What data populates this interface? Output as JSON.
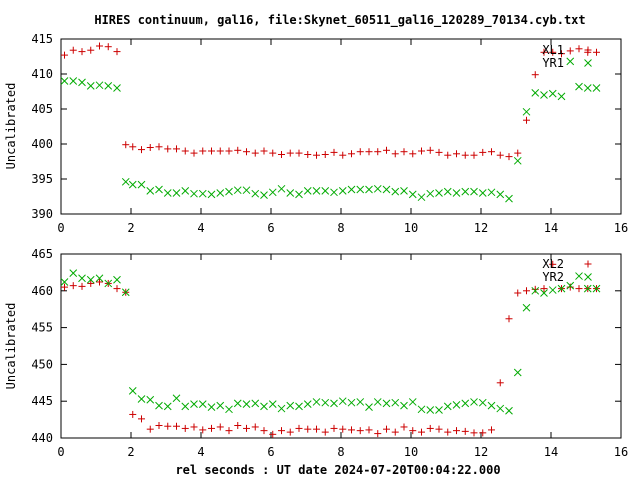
{
  "title": "HIRES continuum, gal16, file:Skynet_60511_gal16_120289_70134.cyb.txt",
  "xlabel": "rel seconds : UT date 2024-07-20T00:04:22.000",
  "colors": {
    "series1": "#cc0000",
    "series2": "#00aa00",
    "axis": "#000000"
  },
  "chart_data": [
    {
      "type": "scatter",
      "ylabel": "Uncalibrated",
      "xlim": [
        0,
        16
      ],
      "ylim": [
        390,
        415
      ],
      "xticks": [
        0,
        2,
        4,
        6,
        8,
        10,
        12,
        14,
        16
      ],
      "yticks": [
        390,
        395,
        400,
        405,
        410,
        415
      ],
      "legend_position": "top-right",
      "series": [
        {
          "name": "XL1",
          "marker": "plus",
          "color": "#cc0000",
          "x": [
            0.1,
            0.35,
            0.6,
            0.85,
            1.1,
            1.35,
            1.6,
            1.85,
            2.05,
            2.3,
            2.55,
            2.8,
            3.05,
            3.3,
            3.55,
            3.8,
            4.05,
            4.3,
            4.55,
            4.8,
            5.05,
            5.3,
            5.55,
            5.8,
            6.05,
            6.3,
            6.55,
            6.8,
            7.05,
            7.3,
            7.55,
            7.8,
            8.05,
            8.3,
            8.55,
            8.8,
            9.05,
            9.3,
            9.55,
            9.8,
            10.05,
            10.3,
            10.55,
            10.8,
            11.05,
            11.3,
            11.55,
            11.8,
            12.05,
            12.3,
            12.55,
            12.8,
            13.05,
            13.3,
            13.55,
            13.8,
            14.05,
            14.3,
            14.55,
            14.8,
            15.05,
            15.3
          ],
          "y": [
            412.7,
            413.4,
            413.2,
            413.4,
            414.0,
            413.9,
            413.2,
            399.9,
            399.6,
            399.2,
            399.5,
            399.6,
            399.3,
            399.3,
            399.0,
            398.7,
            399.0,
            399.0,
            399.0,
            399.0,
            399.1,
            398.9,
            398.7,
            399.0,
            398.7,
            398.5,
            398.7,
            398.7,
            398.5,
            398.4,
            398.5,
            398.8,
            398.4,
            398.6,
            398.9,
            398.9,
            398.9,
            399.1,
            398.6,
            398.9,
            398.6,
            399.0,
            399.1,
            398.8,
            398.4,
            398.6,
            398.4,
            398.4,
            398.8,
            398.9,
            398.4,
            398.2,
            398.7,
            403.4,
            409.9,
            413.1,
            413.1,
            412.9,
            413.3,
            413.6,
            413.1,
            413.1
          ]
        },
        {
          "name": "YR1",
          "marker": "cross",
          "color": "#00aa00",
          "x": [
            0.1,
            0.35,
            0.6,
            0.85,
            1.1,
            1.35,
            1.6,
            1.85,
            2.05,
            2.3,
            2.55,
            2.8,
            3.05,
            3.3,
            3.55,
            3.8,
            4.05,
            4.3,
            4.55,
            4.8,
            5.05,
            5.3,
            5.55,
            5.8,
            6.05,
            6.3,
            6.55,
            6.8,
            7.05,
            7.3,
            7.55,
            7.8,
            8.05,
            8.3,
            8.55,
            8.8,
            9.05,
            9.3,
            9.55,
            9.8,
            10.05,
            10.3,
            10.55,
            10.8,
            11.05,
            11.3,
            11.55,
            11.8,
            12.05,
            12.3,
            12.55,
            12.8,
            13.05,
            13.3,
            13.55,
            13.8,
            14.05,
            14.3,
            14.55,
            14.8,
            15.05,
            15.3
          ],
          "y": [
            409.0,
            409.0,
            408.8,
            408.3,
            408.4,
            408.3,
            408.0,
            394.6,
            394.2,
            394.2,
            393.3,
            393.5,
            393.0,
            393.0,
            393.3,
            392.9,
            392.9,
            392.8,
            393.0,
            393.2,
            393.4,
            393.4,
            392.9,
            392.7,
            393.1,
            393.6,
            393.0,
            392.8,
            393.3,
            393.3,
            393.3,
            393.1,
            393.3,
            393.5,
            393.5,
            393.5,
            393.6,
            393.5,
            393.2,
            393.3,
            392.8,
            392.4,
            392.9,
            393.0,
            393.2,
            393.0,
            393.2,
            393.2,
            393.0,
            393.1,
            392.8,
            392.2,
            397.6,
            404.6,
            407.3,
            407.0,
            407.2,
            406.8,
            411.8,
            408.2,
            408.0,
            408.0
          ]
        }
      ]
    },
    {
      "type": "scatter",
      "ylabel": "Uncalibrated",
      "xlim": [
        0,
        16
      ],
      "ylim": [
        440,
        465
      ],
      "xticks": [
        0,
        2,
        4,
        6,
        8,
        10,
        12,
        14,
        16
      ],
      "yticks": [
        440,
        445,
        450,
        455,
        460,
        465
      ],
      "legend_position": "top-right",
      "series": [
        {
          "name": "XL2",
          "marker": "plus",
          "color": "#cc0000",
          "x": [
            0.1,
            0.35,
            0.6,
            0.85,
            1.1,
            1.35,
            1.6,
            1.85,
            2.05,
            2.3,
            2.55,
            2.8,
            3.05,
            3.3,
            3.55,
            3.8,
            4.05,
            4.3,
            4.55,
            4.8,
            5.05,
            5.3,
            5.55,
            5.8,
            6.05,
            6.3,
            6.55,
            6.8,
            7.05,
            7.3,
            7.55,
            7.8,
            8.05,
            8.3,
            8.55,
            8.8,
            9.05,
            9.3,
            9.55,
            9.8,
            10.05,
            10.3,
            10.55,
            10.8,
            11.05,
            11.3,
            11.55,
            11.8,
            12.05,
            12.3,
            12.55,
            12.8,
            13.05,
            13.3,
            13.55,
            13.8,
            14.05,
            14.3,
            14.55,
            14.8,
            15.05,
            15.3
          ],
          "y": [
            460.5,
            460.7,
            460.6,
            461.0,
            461.2,
            461.0,
            460.3,
            459.8,
            443.2,
            442.6,
            441.2,
            441.7,
            441.6,
            441.6,
            441.3,
            441.5,
            441.1,
            441.3,
            441.5,
            441.0,
            441.7,
            441.3,
            441.5,
            441.0,
            440.5,
            441.0,
            440.8,
            441.3,
            441.2,
            441.2,
            440.8,
            441.3,
            441.2,
            441.1,
            441.0,
            441.1,
            440.6,
            441.2,
            440.8,
            441.5,
            441.0,
            440.8,
            441.3,
            441.2,
            440.8,
            441.0,
            440.9,
            440.7,
            440.7,
            441.1,
            447.5,
            456.2,
            459.7,
            460.0,
            460.2,
            460.3,
            463.6,
            460.3,
            460.5,
            460.3,
            460.3,
            460.3
          ]
        },
        {
          "name": "YR2",
          "marker": "cross",
          "color": "#00aa00",
          "x": [
            0.1,
            0.35,
            0.6,
            0.85,
            1.1,
            1.35,
            1.6,
            1.85,
            2.05,
            2.3,
            2.55,
            2.8,
            3.05,
            3.3,
            3.55,
            3.8,
            4.05,
            4.3,
            4.55,
            4.8,
            5.05,
            5.3,
            5.55,
            5.8,
            6.05,
            6.3,
            6.55,
            6.8,
            7.05,
            7.3,
            7.55,
            7.8,
            8.05,
            8.3,
            8.55,
            8.8,
            9.05,
            9.3,
            9.55,
            9.8,
            10.05,
            10.3,
            10.55,
            10.8,
            11.05,
            11.3,
            11.55,
            11.8,
            12.05,
            12.3,
            12.55,
            12.8,
            13.05,
            13.3,
            13.55,
            13.8,
            14.05,
            14.3,
            14.55,
            14.8,
            15.05,
            15.3
          ],
          "y": [
            461.2,
            462.4,
            461.7,
            461.5,
            461.7,
            461.0,
            461.5,
            459.8,
            446.4,
            445.3,
            445.2,
            444.4,
            444.3,
            445.4,
            444.3,
            444.6,
            444.6,
            444.2,
            444.4,
            443.9,
            444.7,
            444.6,
            444.7,
            444.3,
            444.6,
            444.0,
            444.4,
            444.3,
            444.6,
            444.9,
            444.8,
            444.7,
            445.0,
            444.8,
            444.9,
            444.2,
            444.9,
            444.7,
            444.8,
            444.4,
            444.9,
            443.9,
            443.8,
            443.8,
            444.3,
            444.5,
            444.7,
            444.9,
            444.8,
            444.4,
            444.0,
            443.7,
            448.9,
            457.7,
            460.0,
            459.7,
            460.1,
            460.3,
            460.7,
            462.0,
            460.3,
            460.3
          ]
        }
      ]
    }
  ]
}
